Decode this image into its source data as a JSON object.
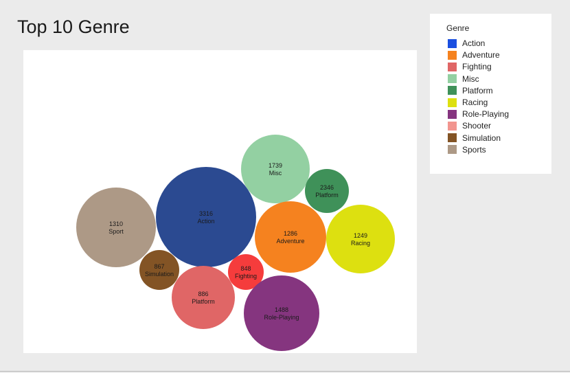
{
  "title": "Top 10 Genre",
  "legend": {
    "title": "Genre",
    "items": [
      {
        "label": "Action",
        "color": "#1a4fe0"
      },
      {
        "label": "Adventure",
        "color": "#f5821f"
      },
      {
        "label": "Fighting",
        "color": "#e06666"
      },
      {
        "label": "Misc",
        "color": "#93d0a2"
      },
      {
        "label": "Platform",
        "color": "#3f9159"
      },
      {
        "label": "Racing",
        "color": "#dde010"
      },
      {
        "label": "Role-Playing",
        "color": "#85357f"
      },
      {
        "label": "Shooter",
        "color": "#f2958f"
      },
      {
        "label": "Simulation",
        "color": "#835425"
      },
      {
        "label": "Sports",
        "color": "#ad9986"
      }
    ]
  },
  "chart_data": {
    "type": "bubble",
    "title": "Top 10 Genre",
    "legend_position": "top-right",
    "bubbles": [
      {
        "value": 3316,
        "label": "Action",
        "color": "#2b4a91"
      },
      {
        "value": 1739,
        "label": "Misc",
        "color": "#93d0a2"
      },
      {
        "value": 2346,
        "label": "Platform",
        "color": "#3f9159"
      },
      {
        "value": 1310,
        "label": "Sport",
        "color": "#ad9986"
      },
      {
        "value": 1286,
        "label": "Adventure",
        "color": "#f5821f"
      },
      {
        "value": 1249,
        "label": "Racing",
        "color": "#dde010"
      },
      {
        "value": 867,
        "label": "Simulation",
        "color": "#835425"
      },
      {
        "value": 848,
        "label": "Fighting",
        "color": "#f53c3c"
      },
      {
        "value": 886,
        "label": "Platform",
        "color": "#e06666"
      },
      {
        "value": 1488,
        "label": "Role-Playing",
        "color": "#85357f"
      }
    ]
  }
}
